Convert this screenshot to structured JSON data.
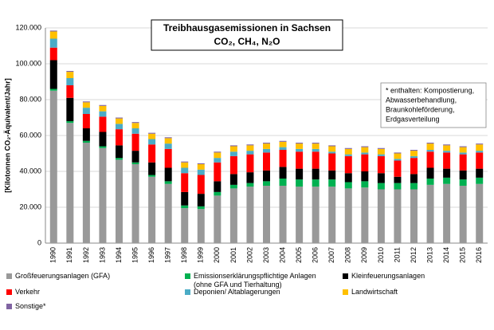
{
  "chart_data": {
    "type": "stacked_bar",
    "title": "Treibhausgasemissionen in Sachsen",
    "subtitle": "CO₂, CH₄, N₂O",
    "y_label": "[Kilotonnen CO₂-Äquivalent/Jahr]",
    "annotation": [
      "* enthalten:  Kompostierung,",
      "Abwasserbehandlung,",
      "Braunkohleförderung,",
      "Erdgasverteilung"
    ],
    "categories": [
      "1990",
      "1991",
      "1992",
      "1993",
      "1994",
      "1995",
      "1996",
      "1997",
      "1998",
      "1999",
      "2000",
      "2001",
      "2002",
      "2003",
      "2004",
      "2005",
      "2006",
      "2007",
      "2008",
      "2009",
      "2010",
      "2011",
      "2012",
      "2013",
      "2014",
      "2015",
      "2016"
    ],
    "ylim": [
      0,
      120000
    ],
    "yticks": [
      0,
      {
        "value": 20000,
        "label": "20.000"
      },
      {
        "value": 40000,
        "label": "40.000"
      },
      {
        "value": 60000,
        "label": "60.000"
      },
      {
        "value": 80000,
        "label": "80.000"
      },
      {
        "value": 100000,
        "label": "100.000"
      },
      {
        "value": 120000,
        "label": "120.000"
      }
    ],
    "grid": true,
    "series": [
      {
        "name": "Großfeuerungsanlagen (GFA)",
        "color": "#999999",
        "values": [
          85000,
          67000,
          56000,
          53000,
          46500,
          44000,
          37000,
          33000,
          19500,
          19000,
          26500,
          30500,
          31500,
          32000,
          32000,
          31500,
          31500,
          31500,
          30500,
          31000,
          30000,
          30000,
          30000,
          32500,
          33000,
          32000,
          33000
        ]
      },
      {
        "name": "Emissionserklärungspflichtige Anlagen (ohne GFA und Tierhaltung)",
        "color": "#00b050",
        "values": [
          1000,
          1000,
          1000,
          1000,
          1000,
          1000,
          1000,
          1500,
          1500,
          1500,
          2000,
          2000,
          2000,
          2500,
          4000,
          4000,
          4000,
          4000,
          3500,
          3500,
          3500,
          3500,
          3500,
          3500,
          3500,
          3500,
          3500
        ]
      },
      {
        "name": "Kleinfeuerungsanlagen",
        "color": "#000000",
        "values": [
          16000,
          13000,
          7000,
          8000,
          7000,
          6500,
          7000,
          7500,
          7500,
          7000,
          6000,
          6000,
          6000,
          6000,
          6500,
          6000,
          6000,
          5000,
          5000,
          5500,
          5500,
          3500,
          5000,
          6000,
          5000,
          5000,
          5000
        ]
      },
      {
        "name": "Verkehr",
        "color": "#ff0000",
        "values": [
          7000,
          7000,
          8000,
          8500,
          9000,
          9500,
          10000,
          10500,
          10500,
          10500,
          10500,
          10000,
          10000,
          10000,
          9500,
          9500,
          9500,
          9500,
          9500,
          9500,
          9500,
          9000,
          9000,
          9000,
          9000,
          9000,
          9000
        ]
      },
      {
        "name": "Deponien/ Altablagerungen",
        "color": "#4bacc6",
        "values": [
          5000,
          4000,
          3500,
          3000,
          3000,
          3000,
          3000,
          3000,
          3000,
          3000,
          2500,
          2500,
          2000,
          2000,
          1500,
          1500,
          1500,
          1000,
          1000,
          1000,
          1000,
          1000,
          1000,
          1000,
          1000,
          1000,
          1000
        ]
      },
      {
        "name": "Landwirtschaft",
        "color": "#ffc000",
        "values": [
          4000,
          3500,
          3000,
          3000,
          3000,
          3000,
          3000,
          3000,
          3000,
          3000,
          3000,
          3000,
          3000,
          3000,
          3000,
          3000,
          3000,
          3000,
          3000,
          3000,
          3000,
          3000,
          3000,
          3500,
          3000,
          3000,
          3500
        ]
      },
      {
        "name": "Sonstige*",
        "color": "#8064a2",
        "values": [
          500,
          500,
          500,
          500,
          500,
          500,
          500,
          500,
          500,
          500,
          500,
          500,
          500,
          500,
          500,
          500,
          500,
          500,
          500,
          500,
          500,
          500,
          500,
          500,
          500,
          500,
          500
        ]
      }
    ]
  }
}
